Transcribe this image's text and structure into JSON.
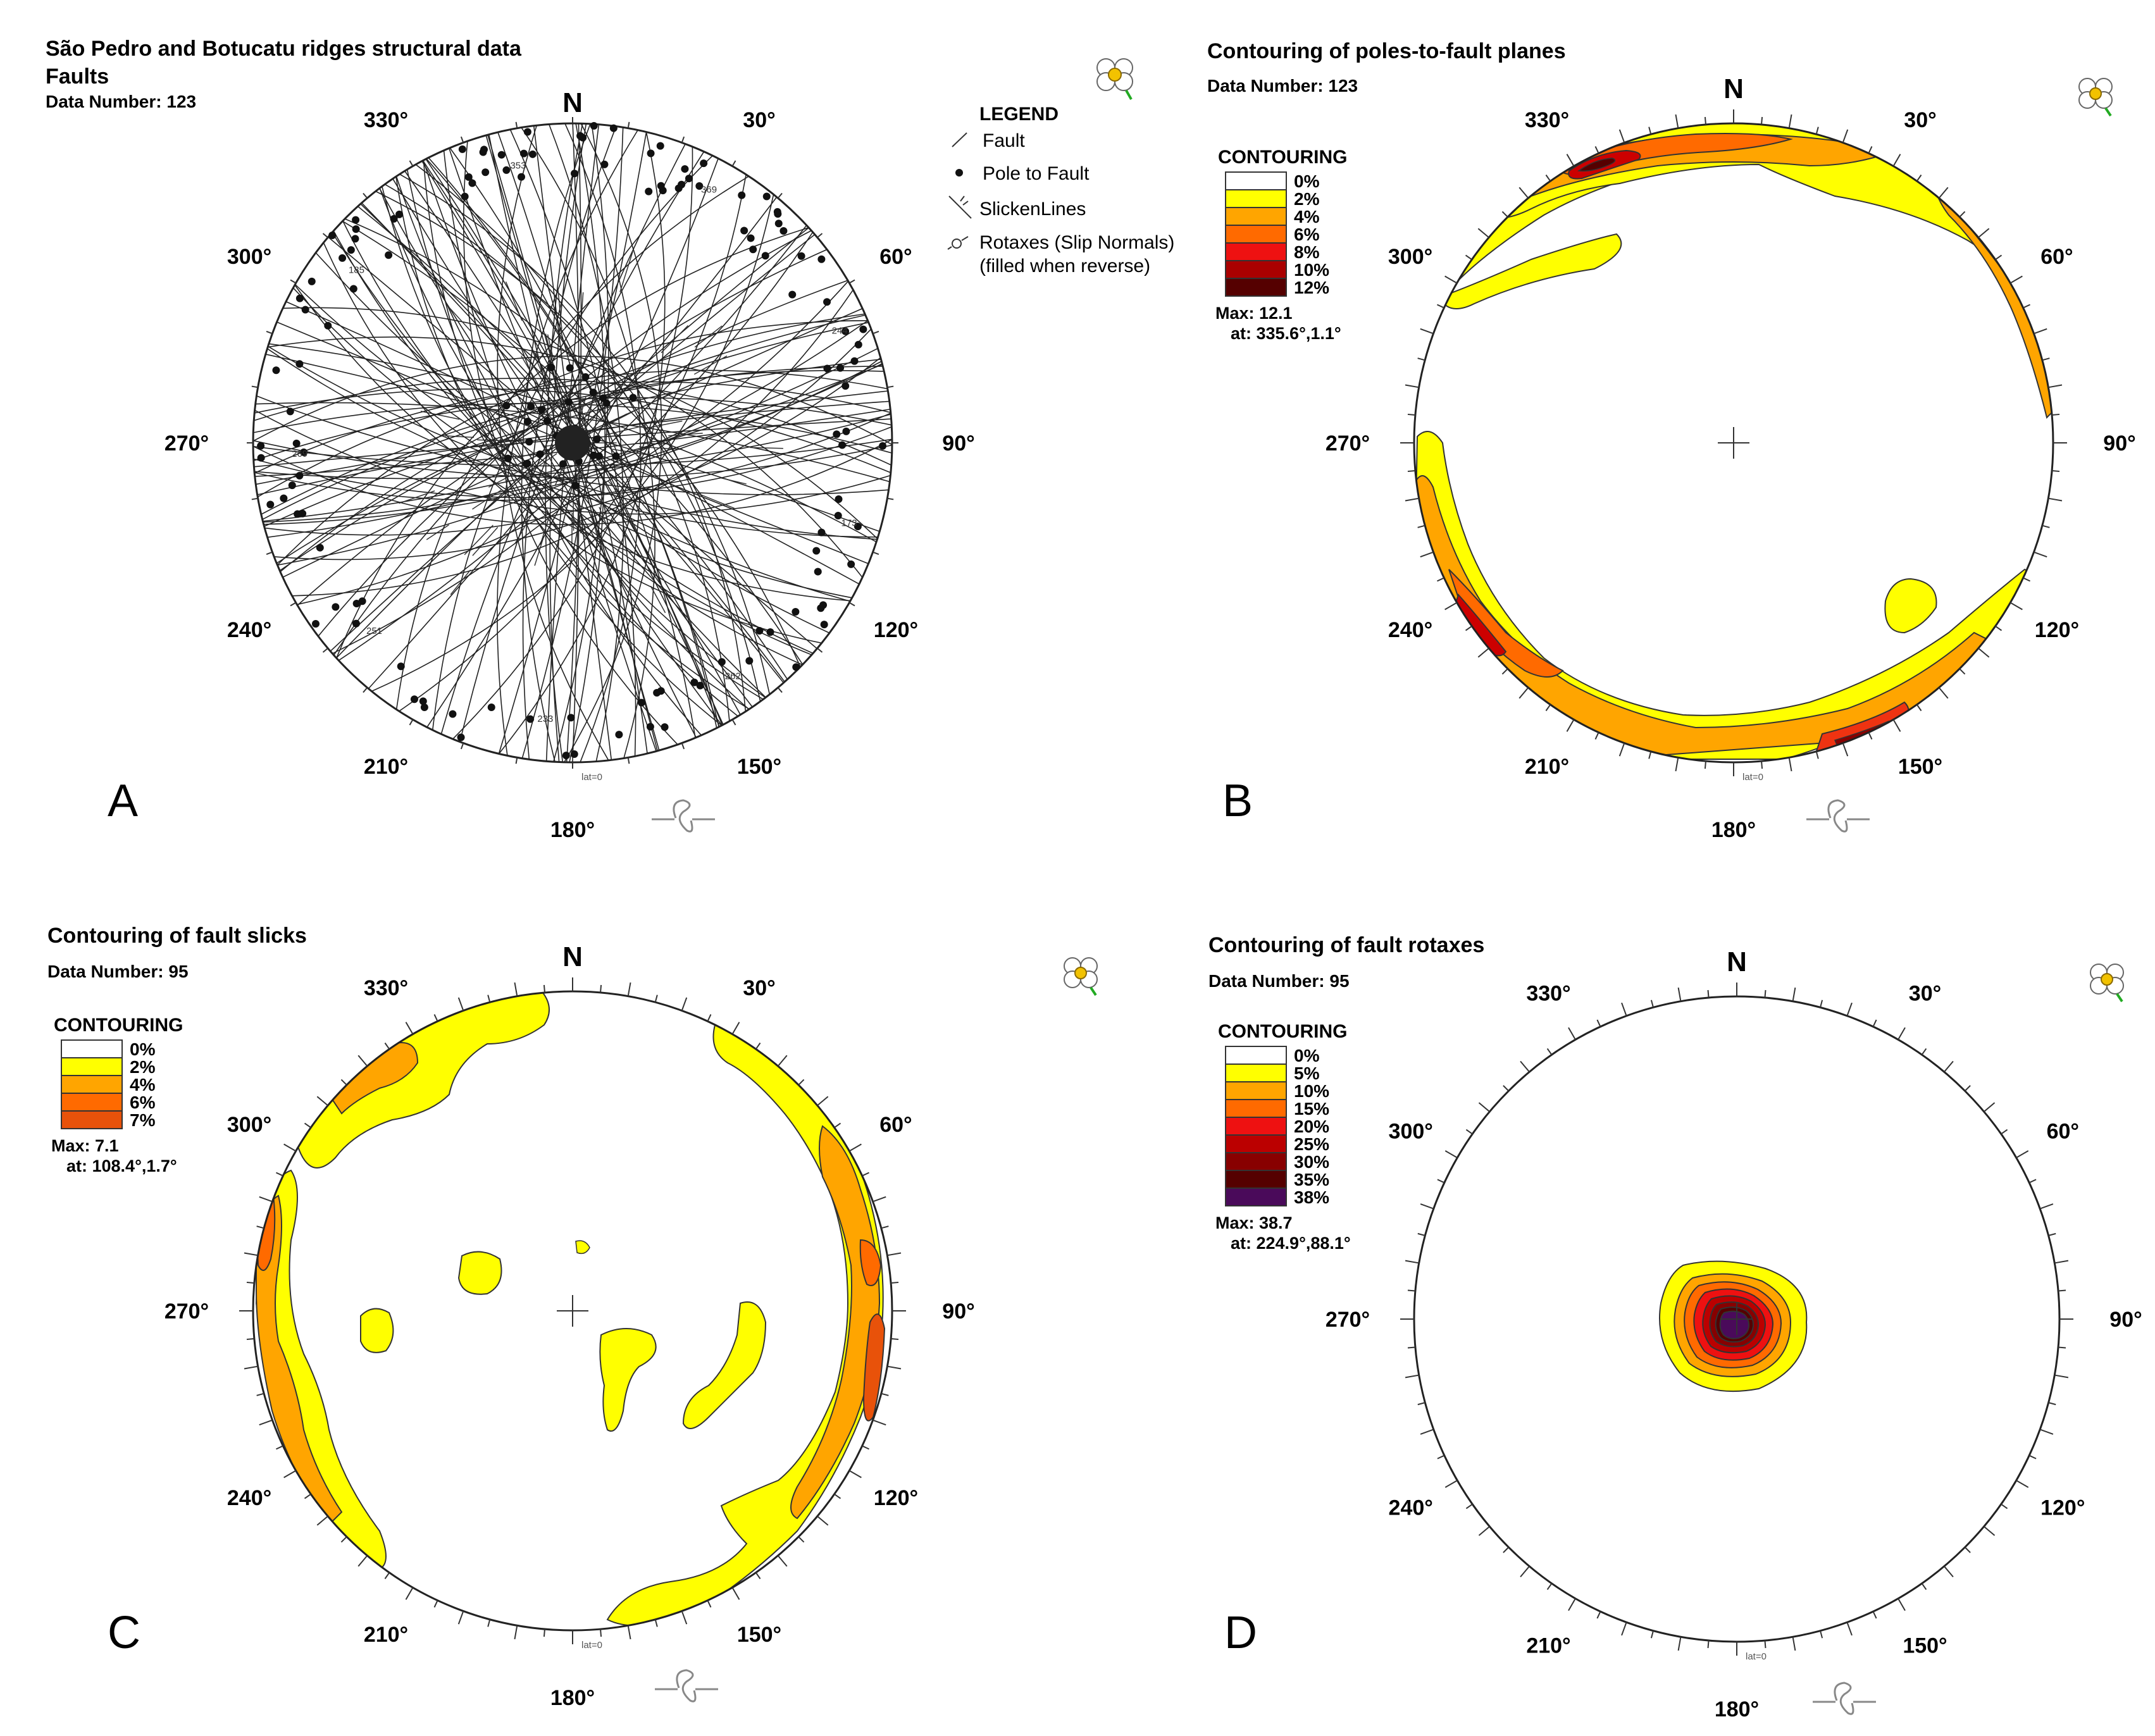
{
  "panels": [
    {
      "id": "A",
      "letter": "A",
      "title": "São Pedro and Botucatu ridges structural data",
      "subtitle": "Faults",
      "data_number": "Data Number: 123",
      "type": "fault-plot",
      "legend": {
        "heading": "LEGEND",
        "items": [
          "Fault",
          "Pole to Fault",
          "SlickenLines",
          "Rotaxes (Slip Normals)",
          "(filled when reverse)"
        ]
      },
      "labels": [
        "173",
        "262",
        "233",
        "251",
        "269",
        "185",
        "353",
        "369",
        "244"
      ]
    },
    {
      "id": "B",
      "letter": "B",
      "title": "Contouring of poles-to-fault planes",
      "data_number": "Data Number: 123",
      "type": "contour",
      "contour_heading": "CONTOURING",
      "levels": [
        "0%",
        "2%",
        "4%",
        "6%",
        "8%",
        "10%",
        "12%"
      ],
      "colors": [
        "#ffffff",
        "#ffff00",
        "#ffa500",
        "#ff6a00",
        "#ee1111",
        "#aa0000",
        "#550000"
      ],
      "max": "Max: 12.1",
      "max_at": "at: 335.6°,1.1°"
    },
    {
      "id": "C",
      "letter": "C",
      "title": "Contouring of fault slicks",
      "data_number": "Data Number: 95",
      "type": "contour",
      "contour_heading": "CONTOURING",
      "levels": [
        "0%",
        "2%",
        "4%",
        "6%",
        "7%"
      ],
      "colors": [
        "#ffffff",
        "#ffff00",
        "#ffa500",
        "#ff6a00",
        "#e8520a"
      ],
      "max": "Max: 7.1",
      "max_at": "at: 108.4°,1.7°"
    },
    {
      "id": "D",
      "letter": "D",
      "title": "Contouring of fault rotaxes",
      "data_number": "Data Number: 95",
      "type": "contour",
      "contour_heading": "CONTOURING",
      "levels": [
        "0%",
        "5%",
        "10%",
        "15%",
        "20%",
        "25%",
        "30%",
        "35%",
        "38%"
      ],
      "colors": [
        "#ffffff",
        "#ffff00",
        "#ffa500",
        "#ff6a00",
        "#ee1111",
        "#bb0000",
        "#880000",
        "#550000",
        "#4a0a5a"
      ],
      "max": "Max: 38.7",
      "max_at": "at: 224.9°,88.1°"
    }
  ],
  "net": {
    "north": "N",
    "angles": [
      "30°",
      "60°",
      "90°",
      "120°",
      "150°",
      "180°",
      "210°",
      "240°",
      "270°",
      "300°",
      "330°"
    ],
    "model_tag": "lat=0"
  },
  "chart_data": [
    {
      "type": "scatter",
      "panel": "A",
      "title": "São Pedro and Botucatu ridges structural data",
      "subtitle": "Faults",
      "n": 123,
      "description_series": [
        "Fault",
        "Pole to Fault",
        "SlickenLines",
        "Rotaxes (Slip Normals)"
      ]
    },
    {
      "type": "heatmap",
      "panel": "B",
      "title": "Contouring of poles-to-fault planes",
      "n": 123,
      "contour_levels_percent": [
        0,
        2,
        4,
        6,
        8,
        10,
        12
      ],
      "max_percent": 12.1,
      "max_location": {
        "trend_deg": 335.6,
        "plunge_deg": 1.1
      }
    },
    {
      "type": "heatmap",
      "panel": "C",
      "title": "Contouring of fault slicks",
      "n": 95,
      "contour_levels_percent": [
        0,
        2,
        4,
        6,
        7
      ],
      "max_percent": 7.1,
      "max_location": {
        "trend_deg": 108.4,
        "plunge_deg": 1.7
      }
    },
    {
      "type": "heatmap",
      "panel": "D",
      "title": "Contouring of fault rotaxes",
      "n": 95,
      "contour_levels_percent": [
        0,
        5,
        10,
        15,
        20,
        25,
        30,
        35,
        38
      ],
      "max_percent": 38.7,
      "max_location": {
        "trend_deg": 224.9,
        "plunge_deg": 88.1
      }
    }
  ]
}
